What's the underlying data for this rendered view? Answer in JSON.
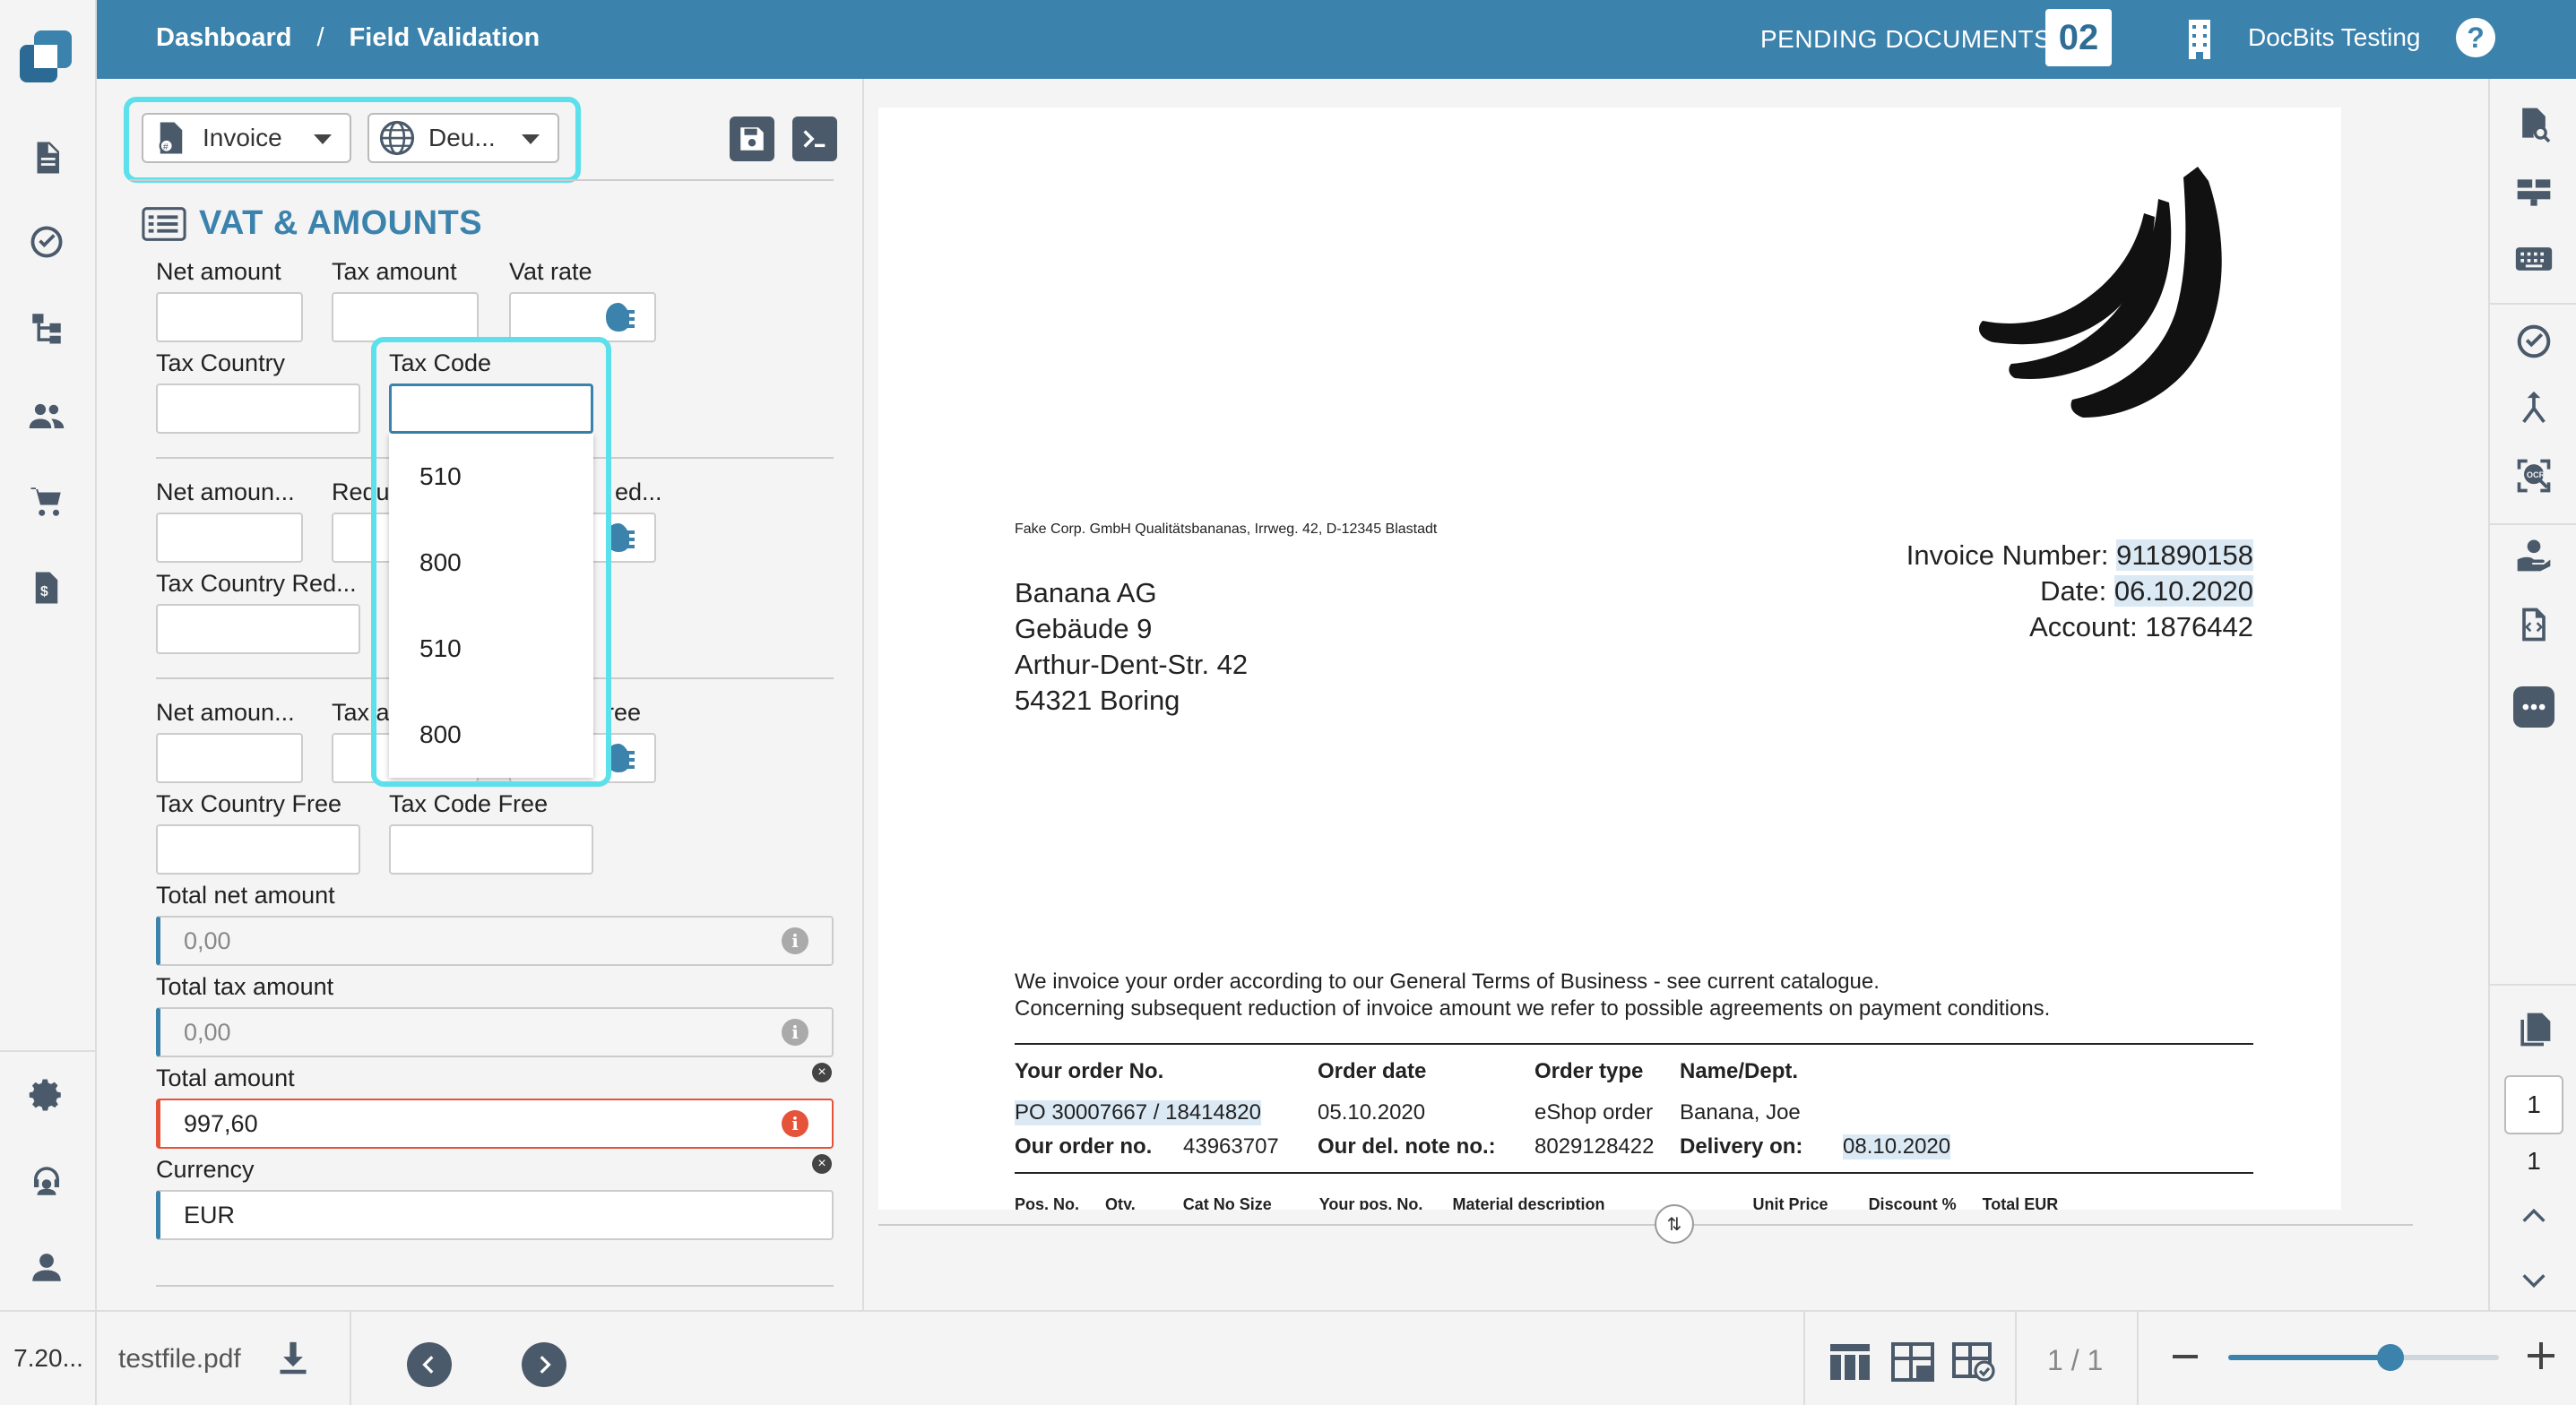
{
  "nav": {
    "items": [
      "document-icon",
      "check-circle-icon",
      "workflow-icon",
      "users-icon",
      "cart-icon",
      "invoice-icon"
    ],
    "bottom_items": [
      "gear-icon",
      "support-icon",
      "user-icon"
    ],
    "version": "7.20..."
  },
  "header": {
    "breadcrumb_home": "Dashboard",
    "breadcrumb_sep": "/",
    "breadcrumb_current": "Field Validation",
    "pending_label": "PENDING DOCUMENTS:",
    "pending_count": "02",
    "tenant": "DocBits Testing",
    "help": "?"
  },
  "form": {
    "doc_type": "Invoice",
    "language": "Deu...",
    "section_title": "VAT & AMOUNTS",
    "labels": {
      "net_amount": "Net amount",
      "tax_amount": "Tax amount",
      "vat_rate": "Vat rate",
      "tax_country": "Tax Country",
      "tax_code": "Tax Code",
      "net_amount_reduced": "Net amoun...",
      "tax_amount_reduced": "Redu",
      "vat_rate_reduced": "ed...",
      "tax_country_reduced": "Tax Country Red...",
      "net_amount_free": "Net amoun...",
      "tax_amount_free": "Tax a",
      "vat_rate_free": "ree",
      "tax_country_free": "Tax Country Free",
      "tax_code_free": "Tax Code Free",
      "total_net": "Total net amount",
      "total_tax": "Total tax amount",
      "total_amount": "Total amount",
      "currency": "Currency"
    },
    "values": {
      "total_net": "0,00",
      "total_tax": "0,00",
      "total_amount": "997,60",
      "currency": "EUR"
    },
    "tax_code_options": [
      "510",
      "800",
      "510",
      "800"
    ]
  },
  "document": {
    "sender_line": "Fake Corp. GmbH Qualitätsbananas, Irrweg. 42, D-12345 Blastadt",
    "address": [
      "Banana AG",
      "Gebäude 9",
      "Arthur-Dent-Str. 42",
      "54321 Boring"
    ],
    "invoice_number_label": "Invoice Number:",
    "invoice_number": "911890158",
    "date_label": "Date:",
    "date": "06.10.2020",
    "account_label": "Account:",
    "account": "1876442",
    "body_line1": "We invoice your order according to our General Terms of Business - see current catalogue.",
    "body_line2": "Concerning subsequent reduction of invoice amount we refer to possible agreements on payment conditions.",
    "col_order_no": "Your order No.",
    "col_order_date": "Order date",
    "col_order_type": "Order type",
    "col_name": "Name/Dept.",
    "order_no": "PO 30007667 / 18414820",
    "order_date": "05.10.2020",
    "order_type": "eShop order",
    "name": "Banana, Joe",
    "our_order_label": "Our order no.",
    "our_order": "43963707",
    "del_note_label": "Our del. note no.:",
    "del_note": "8029128422",
    "delivery_label": "Delivery on:",
    "delivery": "08.10.2020",
    "table_header": [
      "Pos. No.",
      "Qty.",
      "Cat No Size",
      "Your pos. No.",
      "Material description",
      "Unit Price",
      "Discount %",
      "Total EUR"
    ]
  },
  "right_toolbar": {
    "current_page": "1",
    "total_pages": "1"
  },
  "footer": {
    "filename": "testfile.pdf",
    "pager": "1 / 1",
    "zoom_level": 0.6
  },
  "colors": {
    "brand": "#3b82ac",
    "highlight": "#5ce0ec",
    "error": "#e5533b"
  }
}
